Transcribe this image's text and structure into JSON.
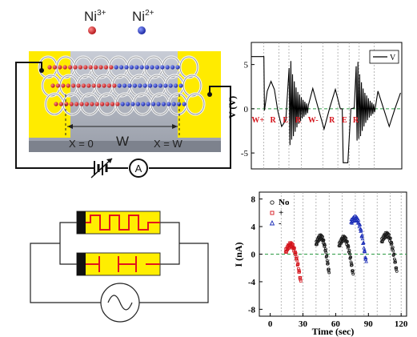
{
  "panel_a": {
    "ions": [
      {
        "symbol": "Ni",
        "charge": "3+",
        "color": "#c0161b"
      },
      {
        "symbol": "Ni",
        "charge": "2+",
        "color": "#1d2fb8"
      }
    ],
    "x_start_label": "X = 0",
    "x_end_label": "X = W",
    "width_label": "W",
    "ammeter_label": "A",
    "electrode_color": "#ffeb00"
  },
  "chart_data": [
    {
      "type": "line",
      "title": "",
      "xlabel": "",
      "ylabel": "V (V)",
      "ylim": [
        -6.8,
        7.5
      ],
      "xlim": [
        0,
        120
      ],
      "yticks": [
        "5",
        "0",
        "-5"
      ],
      "legend": {
        "entries": [
          "V"
        ],
        "placement": "top-right"
      },
      "reference_line": {
        "y": 0,
        "style": "dashed",
        "color": "#2e9b45"
      },
      "segment_labels": [
        "W+",
        "R",
        "E",
        "R",
        "W-",
        "R",
        "E",
        "R"
      ],
      "segment_label_color": "#d4141c",
      "series": [
        {
          "name": "V",
          "color": "#000000",
          "x": [
            0,
            10,
            10.5,
            12.7,
            15.7,
            18.4,
            21.2,
            24.2,
            27.5,
            30.1,
            30.8,
            31.5,
            32.2,
            32.9,
            33.6,
            34.3,
            35.0,
            35.7,
            36.4,
            37.1,
            37.8,
            38.5,
            39.2,
            39.9,
            40.6,
            41.3,
            42.0,
            42.7,
            43.4,
            44.1,
            44.8,
            45.5,
            49.0,
            53.5,
            58.0,
            62.5,
            67.0,
            71.0,
            72.5,
            73.3,
            75.2,
            77.0,
            79.4,
            82.1,
            83.6,
            84.3,
            85.0,
            85.7,
            86.4,
            87.1,
            87.8,
            88.5,
            89.2,
            89.9,
            90.6,
            91.3,
            92.0,
            92.7,
            93.4,
            94.1,
            94.8,
            95.5,
            96.2,
            96.9,
            97.6,
            98.3,
            101.0,
            105.5,
            110.0,
            114.5,
            119.0
          ],
          "y": [
            5.9,
            5.9,
            -0.2,
            2.0,
            3.1,
            2.2,
            -0.3,
            -2.0,
            -1.3,
            4.6,
            -4.1,
            5.4,
            -3.5,
            3.9,
            -3.1,
            3.1,
            -2.6,
            2.4,
            -2.1,
            1.9,
            -1.7,
            1.6,
            -1.4,
            1.3,
            -1.1,
            1.0,
            -0.9,
            0.8,
            -0.7,
            0.6,
            -0.5,
            0.4,
            2.3,
            0.0,
            -2.3,
            0.1,
            2.2,
            0.0,
            0.0,
            -6.1,
            -6.1,
            -6.1,
            0.0,
            0.1,
            4.8,
            -3.6,
            5.3,
            -3.4,
            3.9,
            -3.1,
            3.0,
            -2.5,
            2.3,
            -2.0,
            1.8,
            -1.6,
            1.5,
            -1.3,
            1.2,
            -1.0,
            0.9,
            -0.8,
            0.7,
            -0.6,
            0.5,
            -0.4,
            2.0,
            0.0,
            -2.0,
            0.0,
            1.8
          ]
        }
      ]
    },
    {
      "type": "scatter",
      "title": "",
      "xlabel": "Time (sec)",
      "ylabel": "I (nA)",
      "xlim": [
        -10,
        125
      ],
      "ylim": [
        -9,
        9
      ],
      "xticks": [
        0,
        30,
        60,
        90,
        120
      ],
      "yticks": [
        -8,
        -4,
        0,
        4,
        8
      ],
      "reference_line": {
        "y": 0,
        "style": "dashed",
        "color": "#2e9b45"
      },
      "vertical_lines_x": [
        10,
        22,
        30,
        42,
        54,
        66,
        78,
        86,
        98,
        110,
        120
      ],
      "legend": {
        "entries": [
          "No",
          "+",
          "-"
        ],
        "placement": "top-left"
      },
      "series": [
        {
          "name": "No",
          "color": "#1a1a1a",
          "marker": "circle",
          "segments": [
            [
              42,
              54,
              1.4,
              -2.8
            ],
            [
              63,
              76,
              1.2,
              -3.0
            ],
            [
              102,
              116,
              1.8,
              -2.6
            ]
          ]
        },
        {
          "name": "+",
          "color": "#d4141c",
          "marker": "square",
          "segments": [
            [
              14,
              28,
              0.3,
              -4.0
            ]
          ]
        },
        {
          "name": "-",
          "color": "#1d2fb8",
          "marker": "triangle",
          "segments": [
            [
              74,
              88,
              4.6,
              -1.2
            ]
          ]
        }
      ]
    }
  ]
}
